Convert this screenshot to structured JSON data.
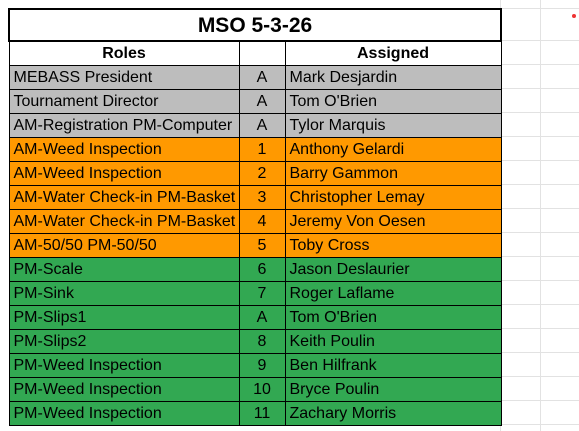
{
  "title": "MSO 5-3-26",
  "headers": {
    "roles": "Roles",
    "slot": "",
    "assigned": "Assigned"
  },
  "colors": {
    "gray": "#bdbdbd",
    "orange": "#ff9900",
    "green": "#32a852"
  },
  "rows": [
    {
      "role": "MEBASS President",
      "slot": "A",
      "assigned": "Mark Desjardin",
      "group": "gray"
    },
    {
      "role": "Tournament Director",
      "slot": "A",
      "assigned": "Tom O'Brien",
      "group": "gray"
    },
    {
      "role": "AM-Registration PM-Computer",
      "slot": "A",
      "assigned": "Tylor Marquis",
      "group": "gray"
    },
    {
      "role": "AM-Weed Inspection",
      "slot": "1",
      "assigned": "Anthony Gelardi",
      "group": "orange"
    },
    {
      "role": "AM-Weed Inspection",
      "slot": "2",
      "assigned": "Barry Gammon",
      "group": "orange"
    },
    {
      "role": "AM-Water Check-in PM-Basket",
      "slot": "3",
      "assigned": "Christopher Lemay",
      "group": "orange"
    },
    {
      "role": "AM-Water Check-in PM-Basket",
      "slot": "4",
      "assigned": "Jeremy Von Oesen",
      "group": "orange"
    },
    {
      "role": "AM-50/50 PM-50/50",
      "slot": "5",
      "assigned": "Toby Cross",
      "group": "orange"
    },
    {
      "role": "PM-Scale",
      "slot": "6",
      "assigned": "Jason Deslaurier",
      "group": "green"
    },
    {
      "role": "PM-Sink",
      "slot": "7",
      "assigned": "Roger Laflame",
      "group": "green"
    },
    {
      "role": "PM-Slips1",
      "slot": "A",
      "assigned": "Tom O'Brien",
      "group": "green"
    },
    {
      "role": "PM-Slips2",
      "slot": "8",
      "assigned": "Keith Poulin",
      "group": "green"
    },
    {
      "role": "PM-Weed Inspection",
      "slot": "9",
      "assigned": "Ben Hilfrank",
      "group": "green"
    },
    {
      "role": "PM-Weed Inspection",
      "slot": "10",
      "assigned": "Bryce Poulin",
      "group": "green"
    },
    {
      "role": "PM-Weed Inspection",
      "slot": "11",
      "assigned": "Zachary Morris",
      "group": "green"
    }
  ]
}
